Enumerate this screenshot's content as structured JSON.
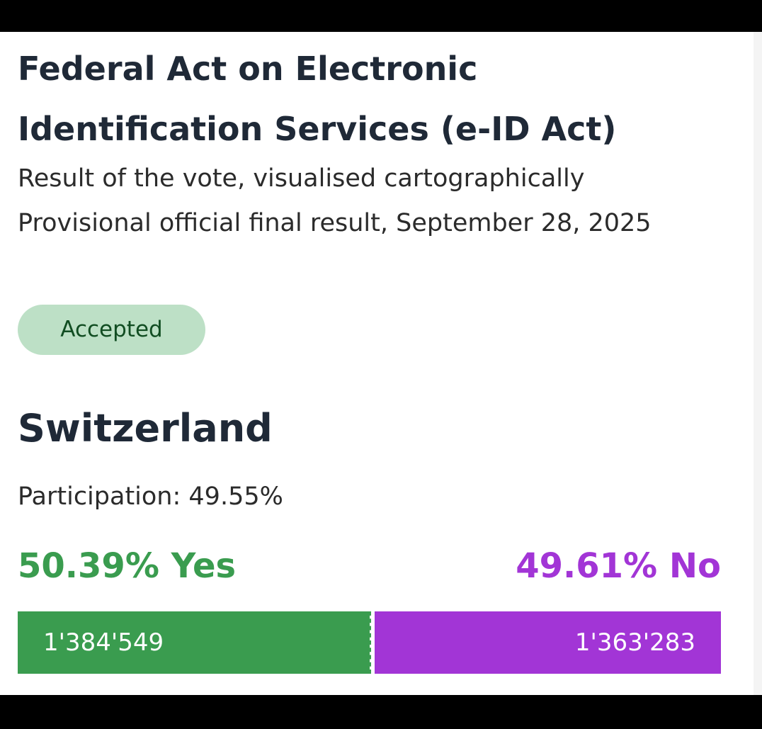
{
  "vote": {
    "title": "Federal Act on Electronic Identification Services (e-ID Act)",
    "subtitle_line1": "Result of the vote, visualised cartographically",
    "subtitle_line2": "Provisional official final result, September 28, 2025",
    "status_badge": "Accepted"
  },
  "result": {
    "region": "Switzerland",
    "participation": "Participation: 49.55%",
    "yes_label": "50.39% Yes",
    "no_label": "49.61% No",
    "yes_share": 50.39,
    "no_share": 49.61,
    "yes_count": "1'384'549",
    "no_count": "1'363'283"
  },
  "colors": {
    "yes": "#3a9c4f",
    "no": "#a235d6",
    "badge_bg": "#bde0c6",
    "badge_text": "#114d22"
  }
}
